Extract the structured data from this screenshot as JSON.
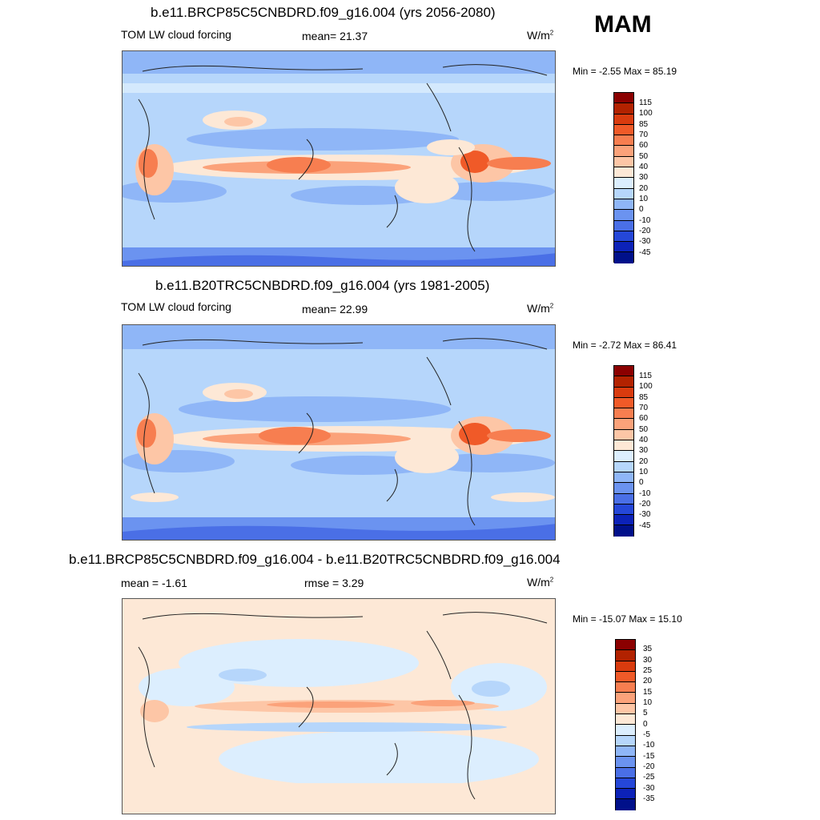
{
  "season": "MAM",
  "panels": [
    {
      "title": "b.e11.BRCP85C5CNBDRD.f09_g16.004 (yrs 2056-2080)",
      "left_label": "TOM LW cloud forcing",
      "mean_label": "mean=  21.37",
      "units_base": "W/m",
      "units_exp": "2",
      "minmax": "Min =  -2.55 Max =  85.19",
      "type": "abs"
    },
    {
      "title": "b.e11.B20TRC5CNBDRD.f09_g16.004 (yrs 1981-2005)",
      "left_label": "TOM LW cloud forcing",
      "mean_label": "mean=  22.99",
      "units_base": "W/m",
      "units_exp": "2",
      "minmax": "Min =  -2.72 Max =  86.41",
      "type": "abs"
    },
    {
      "title": "b.e11.BRCP85C5CNBDRD.f09_g16.004 - b.e11.B20TRC5CNBDRD.f09_g16.004",
      "left_label": "mean =  -1.61",
      "mean_label": "rmse =   3.29",
      "units_base": "W/m",
      "units_exp": "2",
      "minmax": "Min = -15.07 Max =  15.10",
      "type": "diff"
    }
  ],
  "colorbars": {
    "abs": {
      "labels": [
        "115",
        "100",
        "85",
        "70",
        "60",
        "50",
        "40",
        "30",
        "20",
        "10",
        "0",
        "-10",
        "-20",
        "-30",
        "-45"
      ],
      "colors": [
        "#8b0000",
        "#b22200",
        "#d93b0e",
        "#f05a28",
        "#f77e50",
        "#fba27a",
        "#fdc6a6",
        "#fde8d6",
        "#dceefe",
        "#b6d6fb",
        "#8fb6f7",
        "#6b93f0",
        "#4a6fe6",
        "#2547d8",
        "#0c22b8",
        "#00108a"
      ]
    },
    "diff": {
      "labels": [
        "35",
        "30",
        "25",
        "20",
        "15",
        "10",
        "5",
        "0",
        "-5",
        "-10",
        "-15",
        "-20",
        "-25",
        "-30",
        "-35"
      ],
      "colors": [
        "#8b0000",
        "#b22200",
        "#d93b0e",
        "#f05a28",
        "#f77e50",
        "#fba27a",
        "#fdc6a6",
        "#fde8d6",
        "#dceefe",
        "#b6d6fb",
        "#8fb6f7",
        "#6b93f0",
        "#4a6fe6",
        "#2547d8",
        "#0c22b8",
        "#00108a"
      ]
    }
  }
}
